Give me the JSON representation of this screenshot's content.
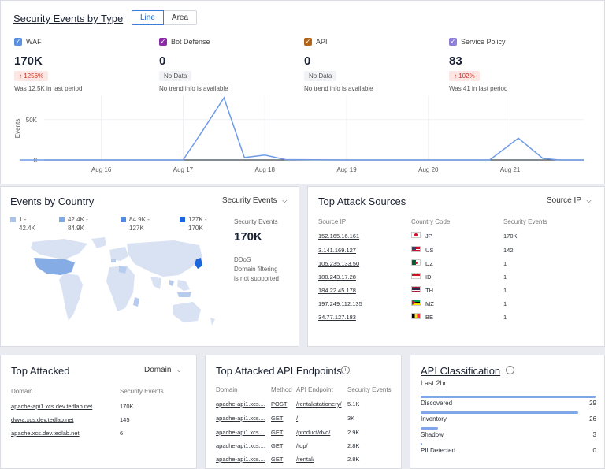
{
  "top": {
    "title": "Security Events by Type",
    "toggle": {
      "line": "Line",
      "area": "Area"
    },
    "kpis": [
      {
        "name": "WAF",
        "value": "170K",
        "badge": "1256%",
        "sub": "Was 12.5K in last period",
        "color": "#5b8fe0",
        "badge_type": "up"
      },
      {
        "name": "Bot Defense",
        "value": "0",
        "badge": "No Data",
        "sub": "No trend info is available",
        "color": "#8a2aa5",
        "badge_type": "nd"
      },
      {
        "name": "API",
        "value": "0",
        "badge": "No Data",
        "sub": "No trend info is available",
        "color": "#b0651a",
        "badge_type": "nd"
      },
      {
        "name": "Service Policy",
        "value": "83",
        "badge": "102%",
        "sub": "Was 41 in last period",
        "color": "#8f7fd8",
        "badge_type": "up"
      }
    ]
  },
  "chart_data": {
    "type": "line",
    "ylabel": "Events",
    "yticks": [
      "0",
      "50K"
    ],
    "ylim": [
      0,
      80000
    ],
    "xticks": [
      "Aug 16",
      "Aug 17",
      "Aug 18",
      "Aug 19",
      "Aug 20",
      "Aug 21"
    ],
    "series": [
      {
        "color": "#6f9be6",
        "points": [
          [
            15.0,
            0
          ],
          [
            16.0,
            0
          ],
          [
            16.5,
            0
          ],
          [
            17.0,
            0
          ],
          [
            17.25,
            38000
          ],
          [
            17.5,
            77000
          ],
          [
            17.75,
            3000
          ],
          [
            18.0,
            6000
          ],
          [
            18.25,
            500
          ],
          [
            19.0,
            0
          ],
          [
            20.0,
            0
          ],
          [
            20.75,
            0
          ],
          [
            21.1,
            27000
          ],
          [
            21.4,
            2000
          ],
          [
            21.6,
            0
          ],
          [
            21.9,
            0
          ]
        ]
      }
    ]
  },
  "country": {
    "title": "Events by Country",
    "dropdown": "Security Events",
    "legend": [
      {
        "range1": "1 -",
        "range2": "42.4K",
        "color": "#a9c4ec"
      },
      {
        "range1": "42.4K -",
        "range2": "84.9K",
        "color": "#7ea9e6"
      },
      {
        "range1": "84.9K -",
        "range2": "127K",
        "color": "#4d8be6"
      },
      {
        "range1": "127K -",
        "range2": "170K",
        "color": "#1b66dc"
      }
    ],
    "events_label": "Security Events",
    "events_value": "170K",
    "ddos_title": "DDoS",
    "ddos_line1": "Domain filtering",
    "ddos_line2": "is not supported"
  },
  "sources": {
    "title": "Top Attack Sources",
    "dropdown": "Source IP",
    "headers": [
      "Source IP",
      "Country Code",
      "Security Events"
    ],
    "rows": [
      {
        "ip": "152.165.16.161",
        "cc": "JP",
        "events": "170K"
      },
      {
        "ip": "3.141.169.127",
        "cc": "US",
        "events": "142"
      },
      {
        "ip": "105.235.133.50",
        "cc": "DZ",
        "events": "1"
      },
      {
        "ip": "180.243.17.28",
        "cc": "ID",
        "events": "1"
      },
      {
        "ip": "184.22.45.178",
        "cc": "TH",
        "events": "1"
      },
      {
        "ip": "197.249.112.135",
        "cc": "MZ",
        "events": "1"
      },
      {
        "ip": "34.77.127.183",
        "cc": "BE",
        "events": "1"
      }
    ]
  },
  "attacked": {
    "title": "Top Attacked",
    "dropdown": "Domain",
    "headers": [
      "Domain",
      "Security Events"
    ],
    "rows": [
      {
        "domain": "apache-api1.xcs.dev.tedlab.net",
        "events": "170K"
      },
      {
        "domain": "dvwa.xcs.dev.tedlab.net",
        "events": "145"
      },
      {
        "domain": "apache.xcs.dev.tedlab.net",
        "events": "6"
      }
    ]
  },
  "endpoints": {
    "title": "Top Attacked API Endpoints",
    "headers": [
      "Domain",
      "Method",
      "API Endpoint",
      "Security Events"
    ],
    "rows": [
      {
        "domain": "apache-api1.xcs....",
        "method": "POST",
        "endpoint": "/rental/stationery/",
        "events": "5.1K"
      },
      {
        "domain": "apache-api1.xcs....",
        "method": "GET",
        "endpoint": "/",
        "events": "3K"
      },
      {
        "domain": "apache-api1.xcs....",
        "method": "GET",
        "endpoint": "/product/dvd/",
        "events": "2.9K"
      },
      {
        "domain": "apache-api1.xcs....",
        "method": "GET",
        "endpoint": "/top/",
        "events": "2.8K"
      },
      {
        "domain": "apache-api1.xcs....",
        "method": "GET",
        "endpoint": "/rental/",
        "events": "2.8K"
      }
    ]
  },
  "apiclass": {
    "title": "API Classification",
    "period": "Last 2hr",
    "items": [
      {
        "label": "Discovered",
        "count": "29",
        "fraction": 1.0
      },
      {
        "label": "Inventory",
        "count": "26",
        "fraction": 0.9
      },
      {
        "label": "Shadow",
        "count": "3",
        "fraction": 0.1
      },
      {
        "label": "PII Detected",
        "count": "0",
        "fraction": 0.0
      }
    ]
  }
}
